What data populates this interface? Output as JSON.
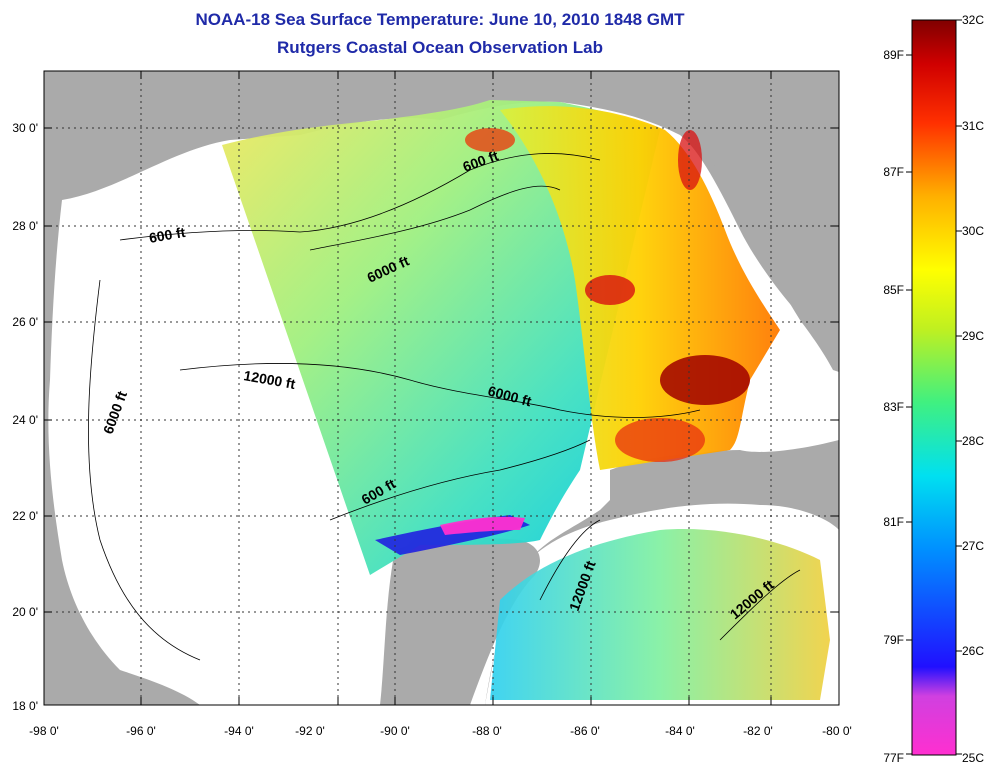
{
  "title": {
    "line1": "NOAA-18 Sea Surface Temperature:  June 10, 2010 1848 GMT",
    "line2": "Rutgers Coastal Ocean Observation Lab"
  },
  "axes": {
    "lat_labels": [
      "30 0'",
      "28 0'",
      "26 0'",
      "24 0'",
      "22 0'",
      "20 0'",
      "18 0'"
    ],
    "lon_labels": [
      "-98 0'",
      "-96 0'",
      "-94 0'",
      "-92 0'",
      "-90 0'",
      "-88 0'",
      "-86 0'",
      "-84 0'",
      "-82 0'",
      "-80 0'"
    ]
  },
  "contours": {
    "c600_a": "600 ft",
    "c600_b": "600 ft",
    "c600_c": "600 ft",
    "c6000_a": "6000 ft",
    "c6000_b": "6000 ft",
    "c6000_c": "6000 ft",
    "c12000_a": "12000 ft",
    "c12000_b": "12000 ft",
    "c12000_c": "12000 ft"
  },
  "colorbar": {
    "celsius": [
      "32C",
      "31C",
      "30C",
      "29C",
      "28C",
      "27C",
      "26C",
      "25C"
    ],
    "fahrenheit": [
      "89F",
      "87F",
      "85F",
      "83F",
      "81F",
      "79F",
      "77F"
    ],
    "range_c": [
      25,
      32
    ]
  },
  "colors": {
    "land": "#aaaaaa",
    "water_nodata": "#ffffff",
    "title": "#1f2aa8"
  }
}
